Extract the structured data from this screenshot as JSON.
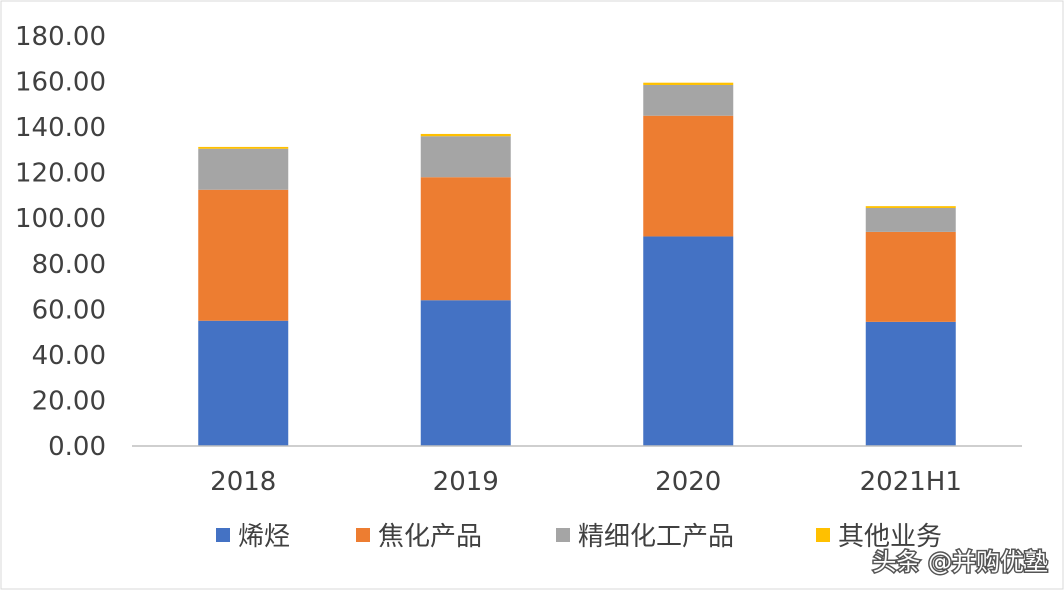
{
  "chart_data": {
    "type": "bar",
    "stacked": true,
    "categories": [
      "2018",
      "2019",
      "2020",
      "2021H1"
    ],
    "series": [
      {
        "name": "烯烃",
        "color": "#4472C4",
        "values": [
          55.0,
          64.0,
          92.0,
          54.5
        ]
      },
      {
        "name": "焦化产品",
        "color": "#ED7D31",
        "values": [
          57.5,
          54.0,
          53.0,
          39.5
        ]
      },
      {
        "name": "精细化工产品",
        "color": "#A5A5A5",
        "values": [
          18.0,
          18.0,
          13.5,
          10.5
        ]
      },
      {
        "name": "其他业务",
        "color": "#FFC000",
        "values": [
          0.8,
          1.0,
          1.0,
          0.8
        ]
      }
    ],
    "ylim": [
      0,
      180
    ],
    "yticks": [
      "0.00",
      "20.00",
      "40.00",
      "60.00",
      "80.00",
      "100.00",
      "120.00",
      "140.00",
      "160.00",
      "180.00"
    ],
    "grid": false,
    "legend_position": "bottom",
    "title": "",
    "xlabel": "",
    "ylabel": ""
  },
  "watermark": "头条 @并购优塾"
}
